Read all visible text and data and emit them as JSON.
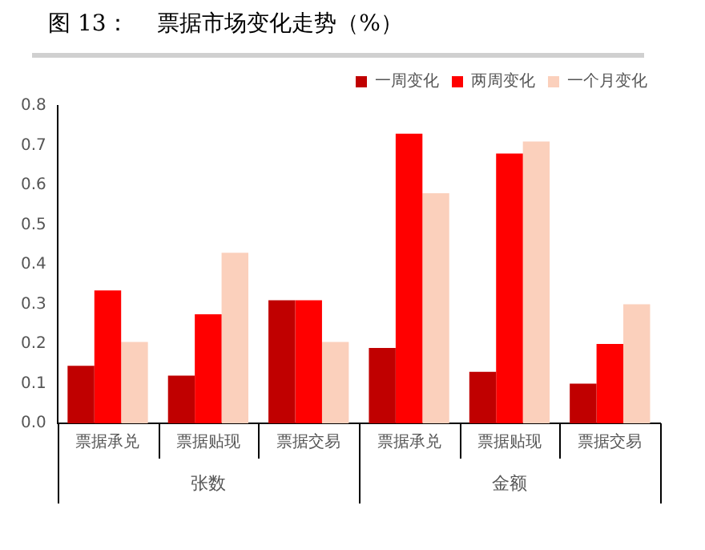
{
  "chart_data": {
    "type": "bar",
    "title": "图 13：    票据市场变化走势（%）",
    "categories": [
      "票据承兑",
      "票据贴现",
      "票据交易",
      "票据承兑",
      "票据贴现",
      "票据交易"
    ],
    "series": [
      {
        "name": "一周变化",
        "color": "#c00000",
        "values": [
          0.145,
          0.12,
          0.31,
          0.19,
          0.13,
          0.1
        ]
      },
      {
        "name": "两周变化",
        "color": "#ff0000",
        "values": [
          0.335,
          0.275,
          0.31,
          0.73,
          0.68,
          0.2
        ]
      },
      {
        "name": "一个月变化",
        "color": "#fbd0bc",
        "values": [
          0.205,
          0.43,
          0.205,
          0.58,
          0.71,
          0.3
        ]
      }
    ],
    "ylim": [
      0,
      0.8
    ],
    "yticks": [
      {
        "value": 0,
        "label": "0.0"
      },
      0.1,
      0.2,
      0.3,
      0.4,
      0.5,
      0.6,
      0.7,
      0.8
    ],
    "grid": false,
    "legend": "top",
    "annotations": [
      "张数",
      "金额"
    ]
  }
}
